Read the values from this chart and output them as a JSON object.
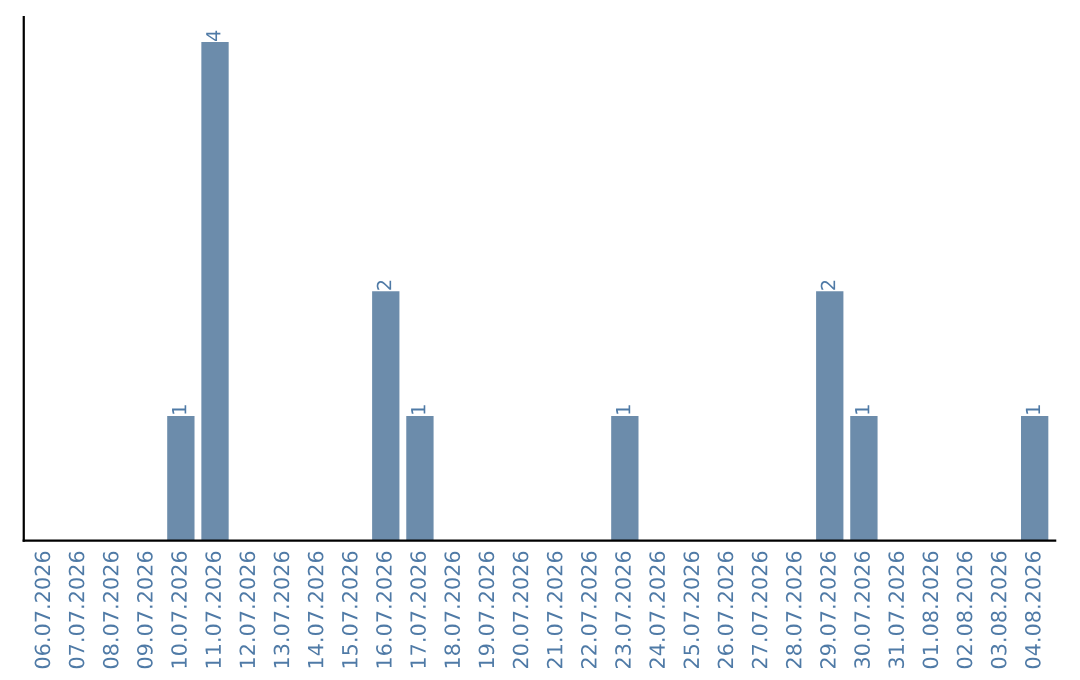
{
  "chart_data": {
    "type": "bar",
    "categories": [
      "06.07.2026",
      "07.07.2026",
      "08.07.2026",
      "09.07.2026",
      "10.07.2026",
      "11.07.2026",
      "12.07.2026",
      "13.07.2026",
      "14.07.2026",
      "15.07.2026",
      "16.07.2026",
      "17.07.2026",
      "18.07.2026",
      "19.07.2026",
      "20.07.2026",
      "21.07.2026",
      "22.07.2026",
      "23.07.2026",
      "24.07.2026",
      "25.07.2026",
      "26.07.2026",
      "27.07.2026",
      "28.07.2026",
      "29.07.2026",
      "30.07.2026",
      "31.07.2026",
      "01.08.2026",
      "02.08.2026",
      "03.08.2026",
      "04.08.2026"
    ],
    "values": [
      0,
      0,
      0,
      0,
      1,
      4,
      0,
      0,
      0,
      0,
      2,
      1,
      0,
      0,
      0,
      0,
      0,
      1,
      0,
      0,
      0,
      0,
      0,
      2,
      1,
      0,
      0,
      0,
      0,
      1
    ],
    "value_labels": [
      null,
      null,
      null,
      null,
      "1",
      "4",
      null,
      null,
      null,
      null,
      "2",
      "1",
      null,
      null,
      null,
      null,
      null,
      "1",
      null,
      null,
      null,
      null,
      null,
      "2",
      "1",
      null,
      null,
      null,
      null,
      "1"
    ],
    "color": "#6c8cab",
    "tick_labels": "x",
    "grid": false,
    "legend": false
  }
}
